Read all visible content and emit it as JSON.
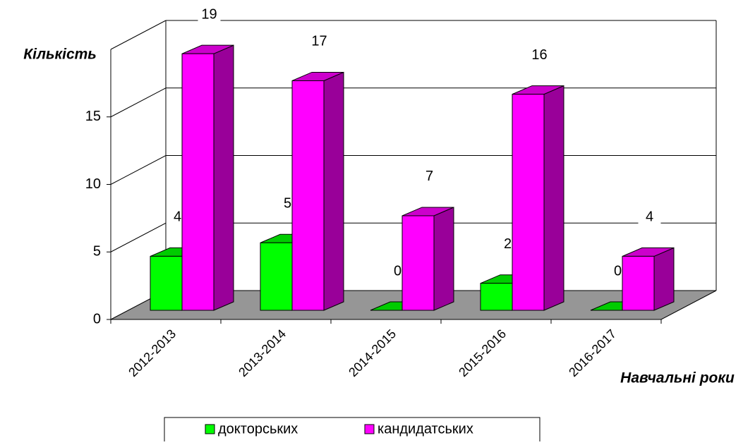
{
  "chart_data": {
    "type": "bar3d",
    "y_label": "Кількість",
    "x_label": "Навчальні роки",
    "categories": [
      "2012-2013",
      "2013-2014",
      "2014-2015",
      "2015-2016",
      "2016-2017"
    ],
    "series": [
      {
        "name": "докторських",
        "color": "#00ff00",
        "values": [
          4,
          5,
          0,
          2,
          0
        ]
      },
      {
        "name": "кандидатських",
        "color": "#ff00ff",
        "values": [
          19,
          17,
          7,
          16,
          4
        ]
      }
    ],
    "ylim": [
      0,
      20
    ],
    "yticks": [
      0,
      5,
      10,
      15
    ],
    "grid": true,
    "legend": "bottom"
  }
}
